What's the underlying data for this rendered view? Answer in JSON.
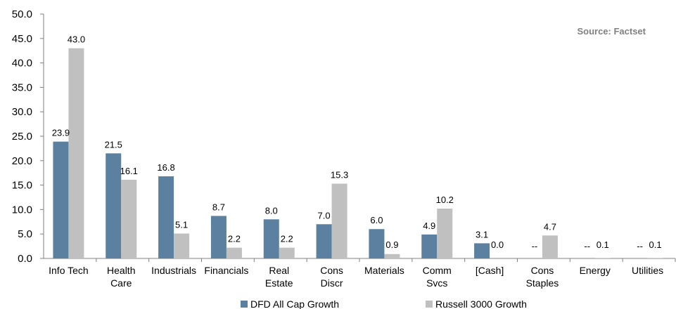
{
  "chart_data": {
    "type": "bar",
    "categories": [
      [
        "Info Tech"
      ],
      [
        "Health",
        "Care"
      ],
      [
        "Industrials"
      ],
      [
        "Financials"
      ],
      [
        "Real",
        "Estate"
      ],
      [
        "Cons",
        "Discr"
      ],
      [
        "Materials"
      ],
      [
        "Comm",
        "Svcs"
      ],
      [
        "[Cash]"
      ],
      [
        "Cons",
        "Staples"
      ],
      [
        "Energy"
      ],
      [
        "Utilities"
      ]
    ],
    "series": [
      {
        "name": "DFD All Cap Growth",
        "color": "#5b80a0",
        "values": [
          23.9,
          21.5,
          16.8,
          8.7,
          8.0,
          7.0,
          6.0,
          4.9,
          3.1,
          null,
          null,
          null
        ],
        "labels": [
          "23.9",
          "21.5",
          "16.8",
          "8.7",
          "8.0",
          "7.0",
          "6.0",
          "4.9",
          "3.1",
          "--",
          "--",
          "--"
        ]
      },
      {
        "name": "Russell 3000 Growth",
        "color": "#c0c0c0",
        "values": [
          43.0,
          16.1,
          5.1,
          2.2,
          2.2,
          15.3,
          0.9,
          10.2,
          0.0,
          4.7,
          0.1,
          0.1
        ],
        "labels": [
          "43.0",
          "16.1",
          "5.1",
          "2.2",
          "2.2",
          "15.3",
          "0.9",
          "10.2",
          "0.0",
          "4.7",
          "0.1",
          "0.1"
        ]
      }
    ],
    "ylim": [
      0,
      50
    ],
    "yticks": [
      "0.0",
      "5.0",
      "10.0",
      "15.0",
      "20.0",
      "25.0",
      "30.0",
      "35.0",
      "40.0",
      "45.0",
      "50.0"
    ],
    "source_note": "Source: Factset",
    "legend_position": "bottom",
    "grid": false
  }
}
